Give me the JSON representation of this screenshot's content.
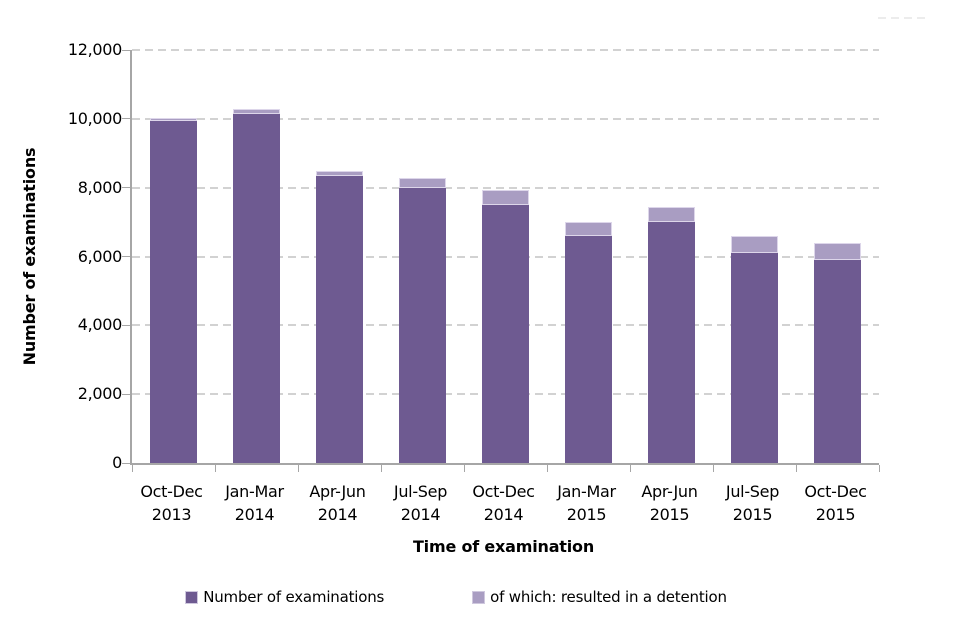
{
  "chart": {
    "y_axis_title": "Number of examinations",
    "x_axis_title": "Time of examination"
  },
  "chart_data": {
    "type": "bar",
    "stacked": true,
    "title": "",
    "xlabel": "Time of examination",
    "ylabel": "Number of examinations",
    "ylim": [
      0,
      12000
    ],
    "ytick_step": 2000,
    "y_ticks": [
      "0",
      "2,000",
      "4,000",
      "6,000",
      "8,000",
      "10,000",
      "12,000"
    ],
    "grid": "horizontal-dashed",
    "legend_position": "bottom",
    "categories": [
      {
        "quarter": "Oct-Dec",
        "year": "2013"
      },
      {
        "quarter": "Jan-Mar",
        "year": "2014"
      },
      {
        "quarter": "Apr-Jun",
        "year": "2014"
      },
      {
        "quarter": "Jul-Sep",
        "year": "2014"
      },
      {
        "quarter": "Oct-Dec",
        "year": "2014"
      },
      {
        "quarter": "Jan-Mar",
        "year": "2015"
      },
      {
        "quarter": "Apr-Jun",
        "year": "2015"
      },
      {
        "quarter": "Jul-Sep",
        "year": "2015"
      },
      {
        "quarter": "Oct-Dec",
        "year": "2015"
      }
    ],
    "series": [
      {
        "name": "Number of examinations",
        "color": "#6E5A91",
        "values": [
          9950,
          10150,
          8350,
          8000,
          7500,
          6600,
          7000,
          6100,
          5900
        ]
      },
      {
        "name": "of which: resulted in a detention",
        "color": "#A99DC2",
        "values": [
          100,
          150,
          150,
          300,
          450,
          400,
          450,
          500,
          500
        ]
      }
    ],
    "stack_totals": [
      10050,
      10300,
      8500,
      8300,
      7950,
      7000,
      7450,
      6600,
      6400
    ]
  },
  "colors": {
    "examinations": "#6E5A91",
    "detention": "#A99DC2",
    "gridline": "#D2D2D2",
    "axis": "#A6A6A6",
    "text": "#000000"
  }
}
